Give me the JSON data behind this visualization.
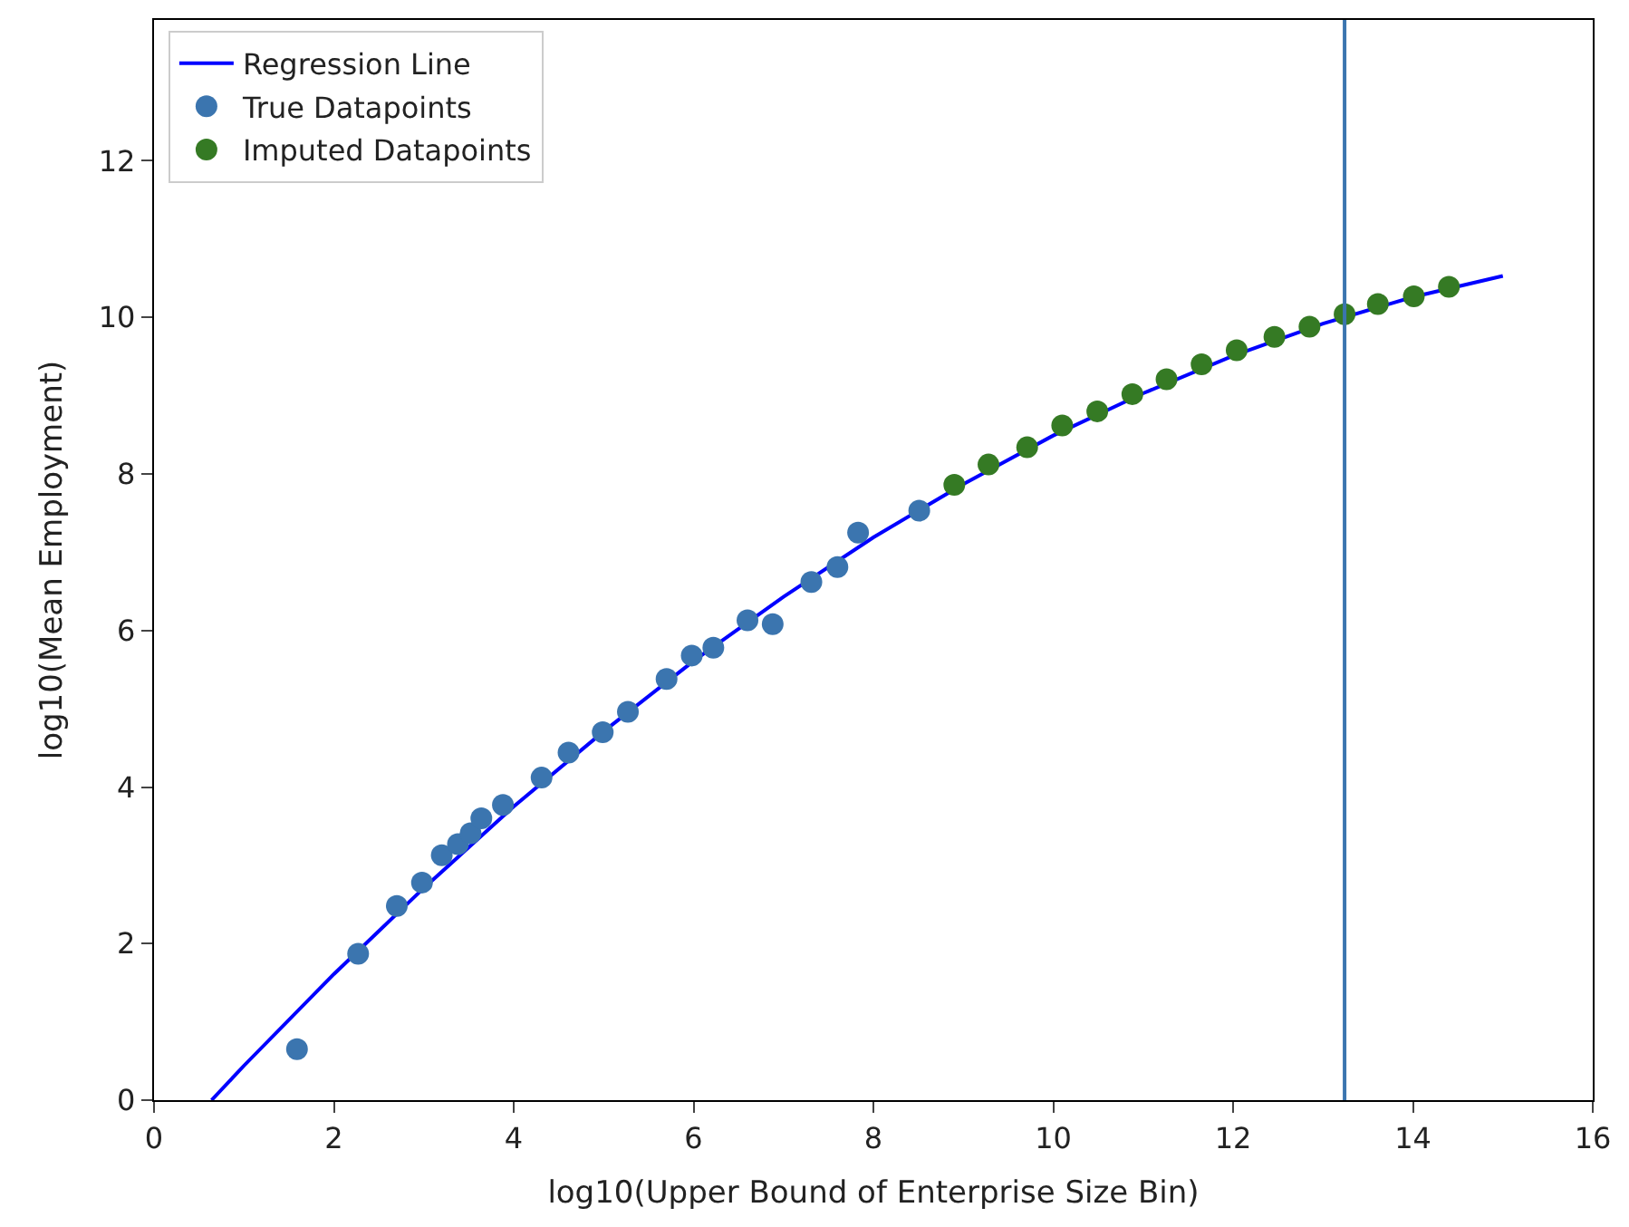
{
  "chart_data": {
    "type": "scatter",
    "xlabel": "log10(Upper Bound of Enterprise Size Bin)",
    "ylabel": "log10(Mean Employment)",
    "xlim": [
      0,
      16
    ],
    "xticks": [
      0,
      2,
      4,
      6,
      8,
      10,
      12,
      14,
      16
    ],
    "ylim": [
      0,
      13.8
    ],
    "yticks": [
      0,
      2,
      4,
      6,
      8,
      10,
      12
    ],
    "legend": "top left",
    "series": [
      {
        "name": "Regression Line",
        "type": "line",
        "color": "#0000ff",
        "line_style": "solid",
        "x": [
          0.64,
          1,
          2,
          3,
          4,
          5,
          6,
          7,
          8,
          9,
          10,
          11,
          12,
          13,
          14,
          15
        ],
        "values": [
          0,
          0.44,
          1.61,
          2.71,
          3.75,
          4.71,
          5.61,
          6.43,
          7.19,
          7.87,
          8.49,
          9.03,
          9.51,
          9.92,
          10.26,
          10.53
        ]
      },
      {
        "name": "True Datapoints",
        "marker": "circle",
        "color": "#3b75af",
        "x": [
          1.59,
          2.27,
          2.7,
          2.98,
          3.2,
          3.38,
          3.52,
          3.64,
          3.88,
          4.31,
          4.61,
          4.99,
          5.27,
          5.7,
          5.98,
          6.22,
          6.6,
          6.88,
          7.31,
          7.6,
          7.83,
          8.51
        ],
        "values": [
          0.65,
          1.87,
          2.48,
          2.78,
          3.13,
          3.27,
          3.41,
          3.6,
          3.77,
          4.12,
          4.44,
          4.7,
          4.96,
          5.38,
          5.68,
          5.78,
          6.13,
          6.08,
          6.62,
          6.81,
          7.25,
          7.53
        ]
      },
      {
        "name": "Imputed Datapoints",
        "marker": "circle",
        "color": "#357a24",
        "x": [
          8.9,
          9.28,
          9.71,
          10.1,
          10.49,
          10.88,
          11.26,
          11.65,
          12.04,
          12.46,
          12.85,
          13.24,
          13.61,
          14.01,
          14.4
        ],
        "values": [
          7.86,
          8.12,
          8.34,
          8.62,
          8.8,
          9.02,
          9.21,
          9.4,
          9.58,
          9.75,
          9.88,
          10.04,
          10.17,
          10.27,
          10.39
        ]
      }
    ],
    "ref_lines": [
      {
        "axis": "x",
        "value": 13.24,
        "label": null,
        "color": "#3b75af"
      }
    ]
  }
}
